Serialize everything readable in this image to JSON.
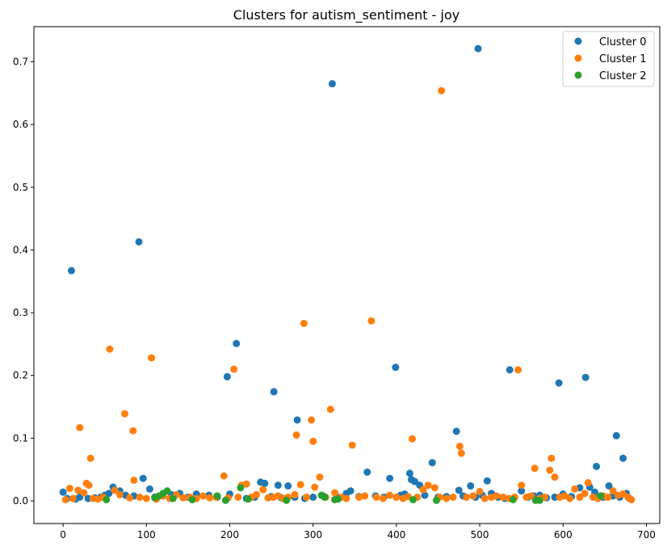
{
  "chart_data": {
    "type": "scatter",
    "title": "Clusters for autism_sentiment - joy",
    "xlabel": "",
    "ylabel": "",
    "xlim": [
      -35,
      716
    ],
    "ylim": [
      -0.036,
      0.756
    ],
    "xticks": [
      0,
      100,
      200,
      300,
      400,
      500,
      600,
      700
    ],
    "yticks": [
      0.0,
      0.1,
      0.2,
      0.3,
      0.4,
      0.5,
      0.6,
      0.7
    ],
    "grid": false,
    "legend_position": "top-right",
    "series": [
      {
        "name": "Cluster 0",
        "color": "#1f77b4",
        "points": [
          [
            0,
            0.014
          ],
          [
            5,
            0.004
          ],
          [
            10,
            0.367
          ],
          [
            15,
            0.003
          ],
          [
            20,
            0.006
          ],
          [
            30,
            0.004
          ],
          [
            38,
            0.005
          ],
          [
            45,
            0.006
          ],
          [
            50,
            0.009
          ],
          [
            55,
            0.012
          ],
          [
            60,
            0.022
          ],
          [
            68,
            0.016
          ],
          [
            75,
            0.009
          ],
          [
            85,
            0.008
          ],
          [
            91,
            0.413
          ],
          [
            96,
            0.036
          ],
          [
            104,
            0.019
          ],
          [
            110,
            0.006
          ],
          [
            120,
            0.008
          ],
          [
            130,
            0.01
          ],
          [
            140,
            0.012
          ],
          [
            150,
            0.006
          ],
          [
            160,
            0.011
          ],
          [
            175,
            0.009
          ],
          [
            185,
            0.006
          ],
          [
            197,
            0.198
          ],
          [
            200,
            0.011
          ],
          [
            208,
            0.251
          ],
          [
            220,
            0.004
          ],
          [
            230,
            0.006
          ],
          [
            237,
            0.03
          ],
          [
            242,
            0.028
          ],
          [
            250,
            0.007
          ],
          [
            253,
            0.174
          ],
          [
            258,
            0.025
          ],
          [
            262,
            0.005
          ],
          [
            270,
            0.024
          ],
          [
            278,
            0.006
          ],
          [
            281,
            0.129
          ],
          [
            290,
            0.004
          ],
          [
            300,
            0.006
          ],
          [
            312,
            0.008
          ],
          [
            323,
            0.665
          ],
          [
            330,
            0.006
          ],
          [
            340,
            0.012
          ],
          [
            345,
            0.016
          ],
          [
            355,
            0.007
          ],
          [
            365,
            0.046
          ],
          [
            375,
            0.008
          ],
          [
            385,
            0.006
          ],
          [
            392,
            0.036
          ],
          [
            399,
            0.213
          ],
          [
            405,
            0.009
          ],
          [
            410,
            0.011
          ],
          [
            416,
            0.044
          ],
          [
            418,
            0.034
          ],
          [
            422,
            0.031
          ],
          [
            428,
            0.025
          ],
          [
            434,
            0.009
          ],
          [
            443,
            0.061
          ],
          [
            450,
            0.006
          ],
          [
            460,
            0.007
          ],
          [
            472,
            0.111
          ],
          [
            475,
            0.017
          ],
          [
            480,
            0.008
          ],
          [
            489,
            0.024
          ],
          [
            495,
            0.006
          ],
          [
            498,
            0.721
          ],
          [
            503,
            0.009
          ],
          [
            509,
            0.032
          ],
          [
            514,
            0.012
          ],
          [
            522,
            0.006
          ],
          [
            530,
            0.004
          ],
          [
            536,
            0.209
          ],
          [
            550,
            0.016
          ],
          [
            558,
            0.006
          ],
          [
            565,
            0.008
          ],
          [
            572,
            0.009
          ],
          [
            580,
            0.005
          ],
          [
            590,
            0.006
          ],
          [
            595,
            0.188
          ],
          [
            600,
            0.011
          ],
          [
            610,
            0.007
          ],
          [
            620,
            0.021
          ],
          [
            627,
            0.197
          ],
          [
            632,
            0.022
          ],
          [
            638,
            0.014
          ],
          [
            640,
            0.055
          ],
          [
            648,
            0.006
          ],
          [
            655,
            0.024
          ],
          [
            660,
            0.008
          ],
          [
            664,
            0.104
          ],
          [
            668,
            0.006
          ],
          [
            672,
            0.068
          ],
          [
            676,
            0.012
          ],
          [
            680,
            0.004
          ]
        ]
      },
      {
        "name": "Cluster 1",
        "color": "#ff7f0e",
        "points": [
          [
            3,
            0.002
          ],
          [
            8,
            0.02
          ],
          [
            12,
            0.004
          ],
          [
            18,
            0.017
          ],
          [
            20,
            0.117
          ],
          [
            25,
            0.013
          ],
          [
            28,
            0.028
          ],
          [
            31,
            0.025
          ],
          [
            33,
            0.068
          ],
          [
            36,
            0.004
          ],
          [
            42,
            0.003
          ],
          [
            48,
            0.006
          ],
          [
            56,
            0.242
          ],
          [
            62,
            0.017
          ],
          [
            68,
            0.01
          ],
          [
            74,
            0.139
          ],
          [
            80,
            0.005
          ],
          [
            84,
            0.112
          ],
          [
            85,
            0.033
          ],
          [
            92,
            0.006
          ],
          [
            100,
            0.004
          ],
          [
            106,
            0.228
          ],
          [
            112,
            0.003
          ],
          [
            120,
            0.008
          ],
          [
            128,
            0.004
          ],
          [
            136,
            0.01
          ],
          [
            144,
            0.005
          ],
          [
            152,
            0.006
          ],
          [
            160,
            0.004
          ],
          [
            168,
            0.008
          ],
          [
            176,
            0.005
          ],
          [
            184,
            0.006
          ],
          [
            193,
            0.04
          ],
          [
            198,
            0.005
          ],
          [
            205,
            0.21
          ],
          [
            210,
            0.006
          ],
          [
            214,
            0.025
          ],
          [
            220,
            0.027
          ],
          [
            226,
            0.006
          ],
          [
            232,
            0.01
          ],
          [
            240,
            0.018
          ],
          [
            246,
            0.005
          ],
          [
            252,
            0.006
          ],
          [
            258,
            0.008
          ],
          [
            264,
            0.004
          ],
          [
            270,
            0.006
          ],
          [
            278,
            0.01
          ],
          [
            280,
            0.105
          ],
          [
            285,
            0.026
          ],
          [
            289,
            0.283
          ],
          [
            292,
            0.006
          ],
          [
            298,
            0.129
          ],
          [
            300,
            0.095
          ],
          [
            302,
            0.022
          ],
          [
            308,
            0.038
          ],
          [
            315,
            0.006
          ],
          [
            321,
            0.146
          ],
          [
            326,
            0.013
          ],
          [
            334,
            0.006
          ],
          [
            340,
            0.004
          ],
          [
            347,
            0.089
          ],
          [
            355,
            0.006
          ],
          [
            362,
            0.008
          ],
          [
            370,
            0.287
          ],
          [
            376,
            0.006
          ],
          [
            384,
            0.004
          ],
          [
            392,
            0.009
          ],
          [
            400,
            0.006
          ],
          [
            408,
            0.004
          ],
          [
            414,
            0.007
          ],
          [
            419,
            0.099
          ],
          [
            425,
            0.006
          ],
          [
            432,
            0.018
          ],
          [
            438,
            0.025
          ],
          [
            446,
            0.021
          ],
          [
            452,
            0.006
          ],
          [
            454,
            0.654
          ],
          [
            460,
            0.004
          ],
          [
            468,
            0.006
          ],
          [
            476,
            0.087
          ],
          [
            478,
            0.076
          ],
          [
            484,
            0.006
          ],
          [
            492,
            0.008
          ],
          [
            500,
            0.015
          ],
          [
            506,
            0.004
          ],
          [
            514,
            0.006
          ],
          [
            520,
            0.008
          ],
          [
            528,
            0.006
          ],
          [
            535,
            0.004
          ],
          [
            542,
            0.006
          ],
          [
            546,
            0.209
          ],
          [
            550,
            0.025
          ],
          [
            556,
            0.006
          ],
          [
            562,
            0.008
          ],
          [
            566,
            0.052
          ],
          [
            572,
            0.004
          ],
          [
            578,
            0.006
          ],
          [
            584,
            0.049
          ],
          [
            586,
            0.068
          ],
          [
            590,
            0.038
          ],
          [
            596,
            0.006
          ],
          [
            602,
            0.008
          ],
          [
            608,
            0.004
          ],
          [
            614,
            0.019
          ],
          [
            620,
            0.006
          ],
          [
            626,
            0.012
          ],
          [
            630,
            0.029
          ],
          [
            636,
            0.006
          ],
          [
            642,
            0.004
          ],
          [
            648,
            0.008
          ],
          [
            654,
            0.006
          ],
          [
            660,
            0.016
          ],
          [
            666,
            0.009
          ],
          [
            672,
            0.011
          ],
          [
            678,
            0.006
          ],
          [
            682,
            0.002
          ]
        ]
      },
      {
        "name": "Cluster 2",
        "color": "#2ca02c",
        "points": [
          [
            52,
            0.002
          ],
          [
            110,
            0.005
          ],
          [
            115,
            0.008
          ],
          [
            120,
            0.012
          ],
          [
            125,
            0.016
          ],
          [
            132,
            0.004
          ],
          [
            155,
            0.002
          ],
          [
            185,
            0.008
          ],
          [
            195,
            0.001
          ],
          [
            213,
            0.021
          ],
          [
            222,
            0.003
          ],
          [
            268,
            0.001
          ],
          [
            310,
            0.009
          ],
          [
            314,
            0.006
          ],
          [
            326,
            0.002
          ],
          [
            330,
            0.003
          ],
          [
            420,
            0.002
          ],
          [
            448,
            0.001
          ],
          [
            540,
            0.002
          ],
          [
            567,
            0.001
          ],
          [
            572,
            0.001
          ],
          [
            645,
            0.008
          ]
        ]
      }
    ]
  }
}
